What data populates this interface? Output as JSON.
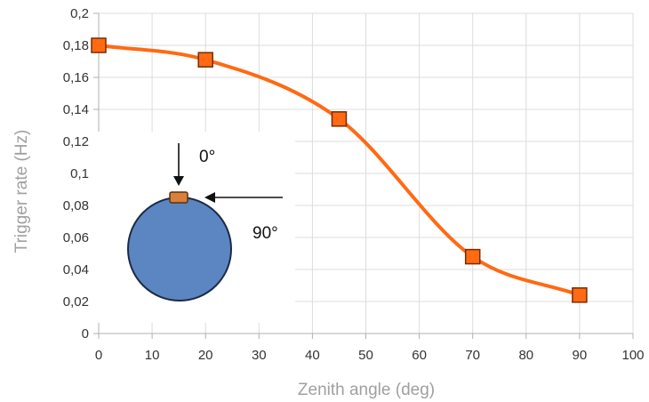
{
  "chart_data": {
    "type": "line",
    "xlabel": "Zenith angle (deg)",
    "ylabel": "Trigger rate (Hz)",
    "xlim": [
      0,
      100
    ],
    "ylim": [
      0,
      0.2
    ],
    "x_ticks": [
      "0",
      "10",
      "20",
      "30",
      "40",
      "50",
      "60",
      "70",
      "80",
      "90",
      "100"
    ],
    "y_ticks": [
      "0",
      "0,02",
      "0,04",
      "0,06",
      "0,08",
      "0,1",
      "0,12",
      "0,14",
      "0,16",
      "0,18",
      "0,2"
    ],
    "grid": true,
    "series": [
      {
        "x": [
          0,
          20,
          45,
          70,
          90
        ],
        "y": [
          0.18,
          0.171,
          0.134,
          0.048,
          0.024
        ],
        "color": "#ff6a13",
        "marker": "square"
      }
    ]
  },
  "inset": {
    "label_zero": "0°",
    "label_ninety": "90°",
    "sphere_color": "#5b86c2",
    "sphere_outline": "#1c2b44",
    "sensor_color": "#d9803a"
  }
}
